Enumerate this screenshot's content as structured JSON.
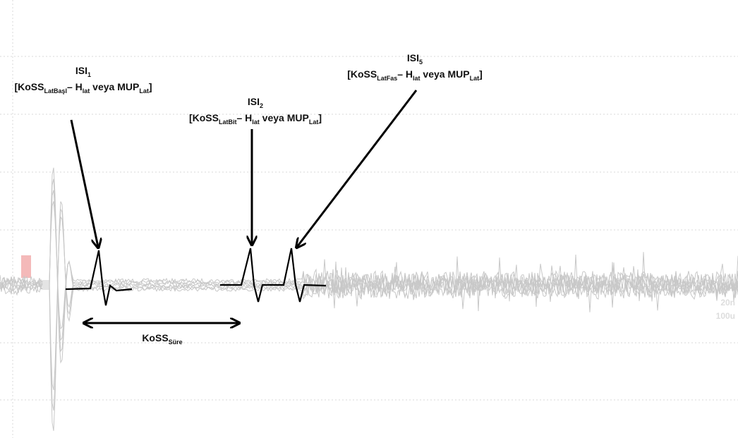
{
  "annotations": {
    "isi1": {
      "title": [
        "ISI",
        "1"
      ],
      "formula": [
        "[KoSS",
        "LatBaşl",
        "– H",
        "lat",
        " veya MUP",
        "Lat",
        "]"
      ]
    },
    "isi2": {
      "title": [
        "ISI",
        "2"
      ],
      "formula": [
        "[KoSS",
        "LatBit",
        "– H",
        "lat",
        " veya MUP",
        "Lat",
        "]"
      ]
    },
    "isi5": {
      "title": [
        "ISI",
        "5"
      ],
      "formula": [
        "[KoSS",
        "LatFas",
        "– H",
        "lat",
        " veya MUP",
        "Lat",
        "]"
      ]
    },
    "duration": [
      "KoSS",
      "Süre"
    ]
  },
  "scale": [
    "20n",
    "100u"
  ]
}
